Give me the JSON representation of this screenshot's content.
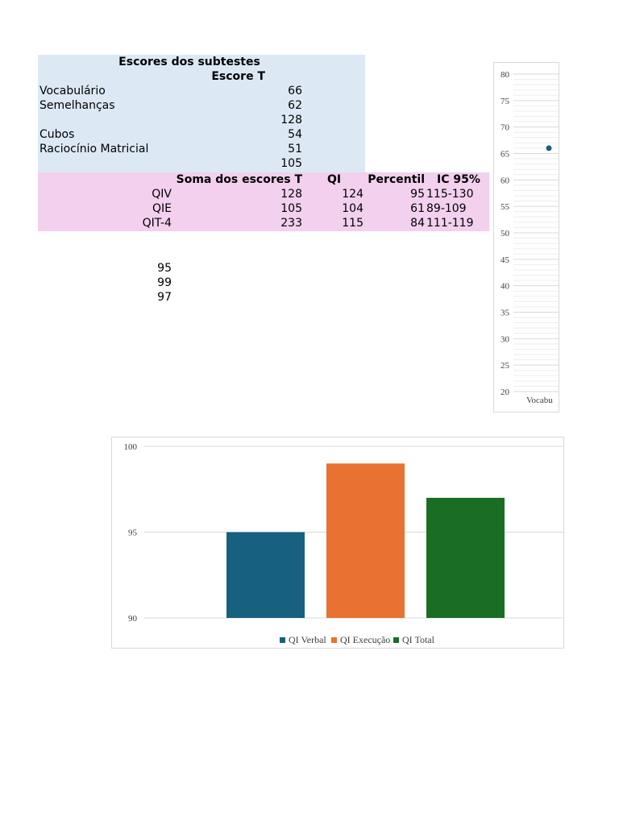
{
  "subtests": {
    "title": "Escores dos subtestes",
    "col_header": "Escore T",
    "rows": [
      {
        "label": "Vocabulário",
        "value": "66"
      },
      {
        "label": "Semelhanças",
        "value": "62"
      },
      {
        "label": "",
        "value": "128"
      },
      {
        "label": "Cubos",
        "value": "54"
      },
      {
        "label": "Raciocínio Matricial",
        "value": "51"
      },
      {
        "label": "",
        "value": "105"
      }
    ]
  },
  "iq_table": {
    "headers": [
      "Soma dos escores T",
      "QI",
      "Percentil",
      "IC 95%"
    ],
    "rows": [
      {
        "label": "QIV",
        "sum": "128",
        "qi": "124",
        "percentil": "95",
        "ic": "115-130"
      },
      {
        "label": "QIE",
        "sum": "105",
        "qi": "104",
        "percentil": "61",
        "ic": "89-109"
      },
      {
        "label": "QIT-4",
        "sum": "233",
        "qi": "115",
        "percentil": "84",
        "ic": "111-119"
      }
    ]
  },
  "extra_values": [
    "95",
    "99",
    "97"
  ],
  "chart_data": [
    {
      "type": "line",
      "ylim": [
        20,
        80
      ],
      "yticks": [
        20,
        25,
        30,
        35,
        40,
        45,
        50,
        55,
        60,
        65,
        70,
        75,
        80
      ],
      "categories": [
        "Vocabu"
      ],
      "values": [
        66
      ],
      "color": "#17607f",
      "grid": true
    },
    {
      "type": "bar",
      "ylim": [
        90,
        100
      ],
      "yticks": [
        90,
        95,
        100
      ],
      "categories": [
        "QI Verbal",
        "QI Execução",
        "QI Total"
      ],
      "series": [
        {
          "name": "QI Verbal",
          "value": 95,
          "color": "#17607f"
        },
        {
          "name": "QI Execução",
          "value": 99,
          "color": "#e97132"
        },
        {
          "name": "QI Total",
          "value": 97,
          "color": "#1a6e24"
        }
      ],
      "legend": "bottom",
      "grid": true
    }
  ]
}
